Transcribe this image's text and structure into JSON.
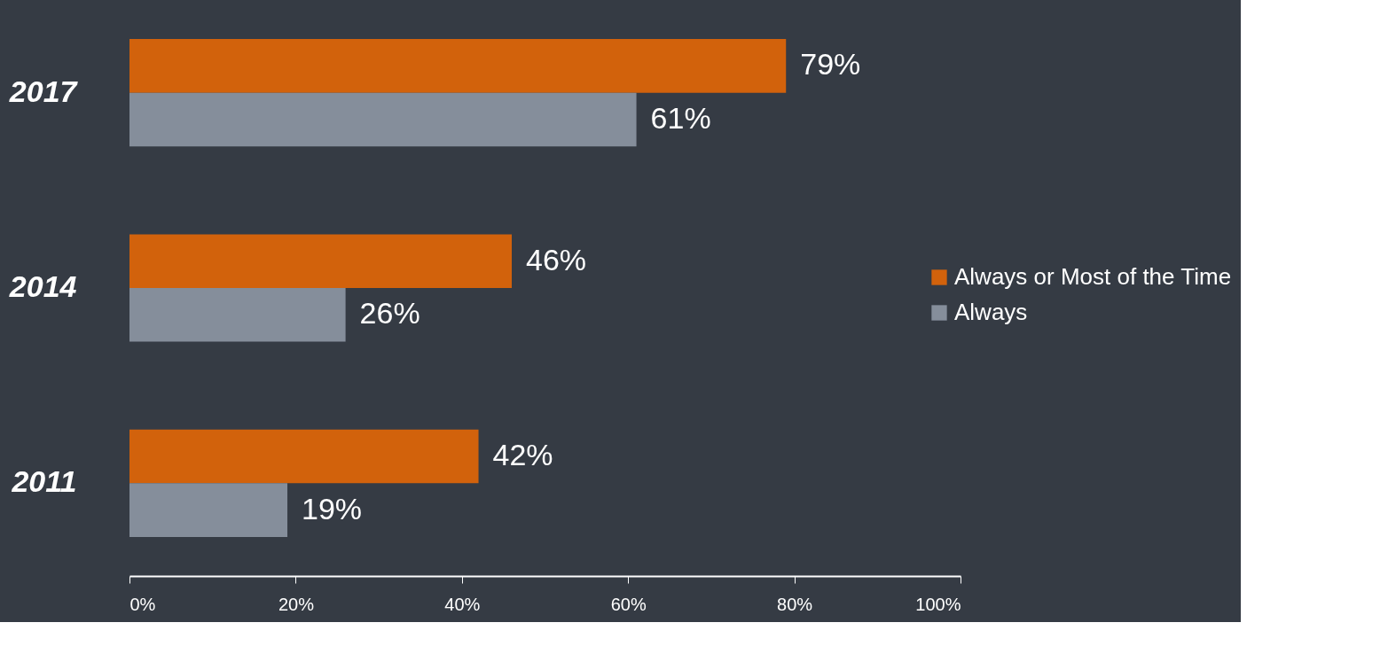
{
  "chart_data": {
    "type": "bar",
    "orientation": "horizontal",
    "categories": [
      "2017",
      "2014",
      "2011"
    ],
    "series": [
      {
        "name": "Always or Most of the Time",
        "color": "#d2620c",
        "values": [
          79,
          46,
          42
        ],
        "value_labels": [
          "79%",
          "46%",
          "42%"
        ]
      },
      {
        "name": "Always",
        "color": "#858e9b",
        "values": [
          61,
          26,
          19
        ],
        "value_labels": [
          "61%",
          "26%",
          "19%"
        ]
      }
    ],
    "xlim": [
      0,
      100
    ],
    "xticks": [
      {
        "value": 0,
        "label": "0%"
      },
      {
        "value": 20,
        "label": "20%"
      },
      {
        "value": 40,
        "label": "40%"
      },
      {
        "value": 60,
        "label": "60%"
      },
      {
        "value": 80,
        "label": "80%"
      },
      {
        "value": 100,
        "label": "100%"
      }
    ],
    "grid": false,
    "legend": "right"
  }
}
